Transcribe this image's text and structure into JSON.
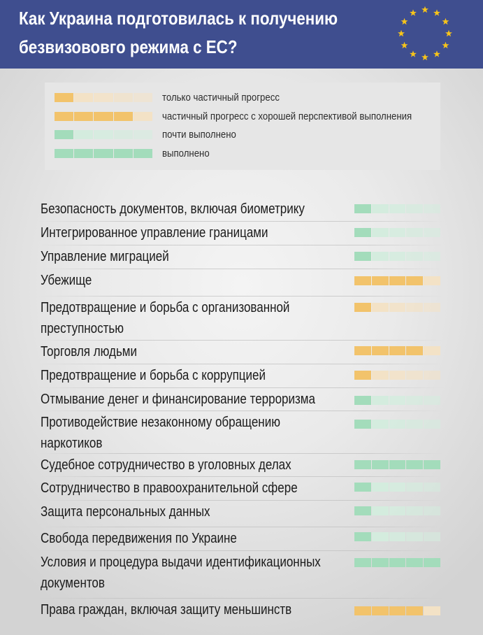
{
  "header": {
    "title_line1": "Как Украина подготовилась к получению",
    "title_line2": "безвизововго режима с ЕС?",
    "colors": {
      "background": "#3f4e8f",
      "title": "#ffffff",
      "stars": "#f7c41a"
    },
    "icon": "eu-stars-icon"
  },
  "legend": [
    {
      "label": "только частичный прогресс",
      "filled": 1,
      "color": "orange"
    },
    {
      "label": "частичный прогресс с хорошей перспективой выполнения",
      "filled": 4,
      "color": "orange"
    },
    {
      "label": "почти выполнено",
      "filled": 1,
      "color": "green"
    },
    {
      "label": "выполнено",
      "filled": 5,
      "color": "green"
    }
  ],
  "chart_data": {
    "type": "table",
    "scale_segments": 5,
    "colors": {
      "orange": "#f2c36b",
      "orange_faint": "#f3e2c6",
      "green": "#a3dcbb",
      "green_faint": "#d4ecde"
    },
    "items": [
      {
        "label": "Безопасность документов, включая биометрику",
        "status": "почти выполнено",
        "filled": 1,
        "color": "green"
      },
      {
        "label": "Интегрированное управление границами",
        "status": "почти выполнено",
        "filled": 1,
        "color": "green"
      },
      {
        "label": "Управление миграцией",
        "status": "почти выполнено",
        "filled": 1,
        "color": "green"
      },
      {
        "label": "Убежище",
        "status": "частичный прогресс с хорошей перспективой выполнения",
        "filled": 4,
        "color": "orange"
      },
      {
        "label": "Предотвращение и борьба с организованной",
        "label2": "преступностью",
        "status": "только частичный прогресс",
        "filled": 1,
        "color": "orange"
      },
      {
        "label": "Торговля людьми",
        "status": "частичный прогресс с хорошей перспективой выполнения",
        "filled": 4,
        "color": "orange"
      },
      {
        "label": "Предотвращение и борьба с коррупцией",
        "status": "только частичный прогресс",
        "filled": 1,
        "color": "orange"
      },
      {
        "label": "Отмывание денег и финансирование терроризма",
        "status": "почти выполнено",
        "filled": 1,
        "color": "green"
      },
      {
        "label": "Противодействие незаконному обращению",
        "label2": "наркотиков",
        "status": "почти выполнено",
        "filled": 1,
        "color": "green"
      },
      {
        "label": "Судебное сотрудничество в уголовных делах",
        "status": "выполнено",
        "filled": 5,
        "color": "green"
      },
      {
        "label": "Сотрудничество в правоохранительной сфере",
        "status": "почти выполнено",
        "filled": 1,
        "color": "green"
      },
      {
        "label": "Защита персональных данных",
        "status": "почти выполнено",
        "filled": 1,
        "color": "green"
      },
      {
        "label": "Свобода передвижения по Украине",
        "status": "почти выполнено",
        "filled": 1,
        "color": "green"
      },
      {
        "label": "Условия и процедура выдачи идентификационных",
        "label2": "документов",
        "status": "выполнено",
        "filled": 5,
        "color": "green"
      },
      {
        "label": "Права граждан, включая защиту меньшинств",
        "status": "частичный прогресс с хорошей перспективой выполнения",
        "filled": 4,
        "color": "orange"
      }
    ]
  }
}
